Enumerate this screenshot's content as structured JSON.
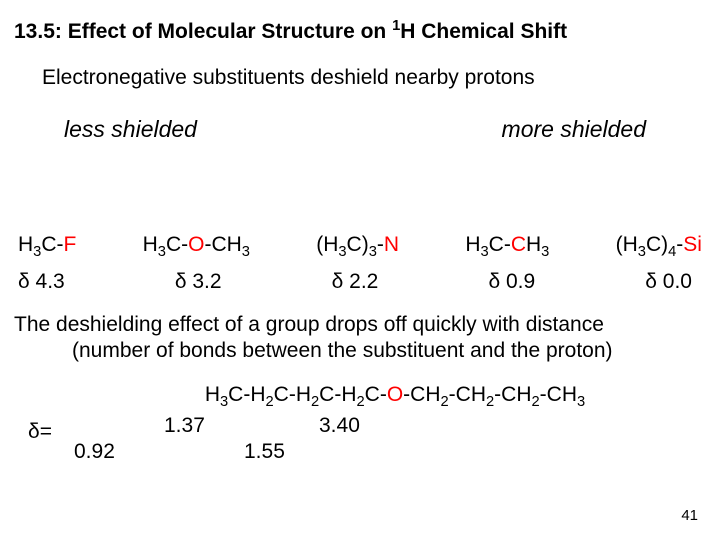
{
  "title_prefix": "13.5:  Effect of Molecular Structure on ",
  "title_sup": "1",
  "title_suffix": "H Chemical Shift",
  "intro": "Electronegative substituents deshield nearby protons",
  "less": "less shielded",
  "more": "more shielded",
  "formulas": {
    "f1a": "H",
    "f1b": "3",
    "f1c": "C-",
    "f1d": "F",
    "f2a": "H",
    "f2b": "3",
    "f2c": "C-",
    "f2d": "O",
    "f2e": "-CH",
    "f2f": "3",
    "f3a": "(H",
    "f3b": "3",
    "f3c": "C)",
    "f3d": "3",
    "f3e": "-",
    "f3f": "N",
    "f4a": "H",
    "f4b": "3",
    "f4c": "C-",
    "f4d": "C",
    "f4e": "H",
    "f4f": "3",
    "f5a": "(H",
    "f5b": "3",
    "f5c": "C)",
    "f5d": "4",
    "f5e": "-",
    "f5f": "Si"
  },
  "deltas": {
    "d1": "δ 4.3",
    "d2": "δ 3.2",
    "d3": "δ 2.2",
    "d4": "δ 0.9",
    "d5": "δ 0.0"
  },
  "conclusion1": "The deshielding effect of a group drops off quickly with distance",
  "conclusion2": "(number of bonds between the substituent and the proton)",
  "chain": {
    "p1": "H",
    "s1": "3",
    "p2": "C-H",
    "s2": "2",
    "p3": "C-H",
    "s3": "2",
    "p4": "C-H",
    "s4": "2",
    "p5": "C-",
    "o": "O",
    "p6": "-CH",
    "s5": "2",
    "p7": "-CH",
    "s6": "2",
    "p8": "-CH",
    "s7": "2",
    "p9": "-CH",
    "s8": "3"
  },
  "delta_eq": "δ=",
  "v137": "1.37",
  "v340": "3.40",
  "v092": "0.92",
  "v155": "1.55",
  "pagenum": "41"
}
